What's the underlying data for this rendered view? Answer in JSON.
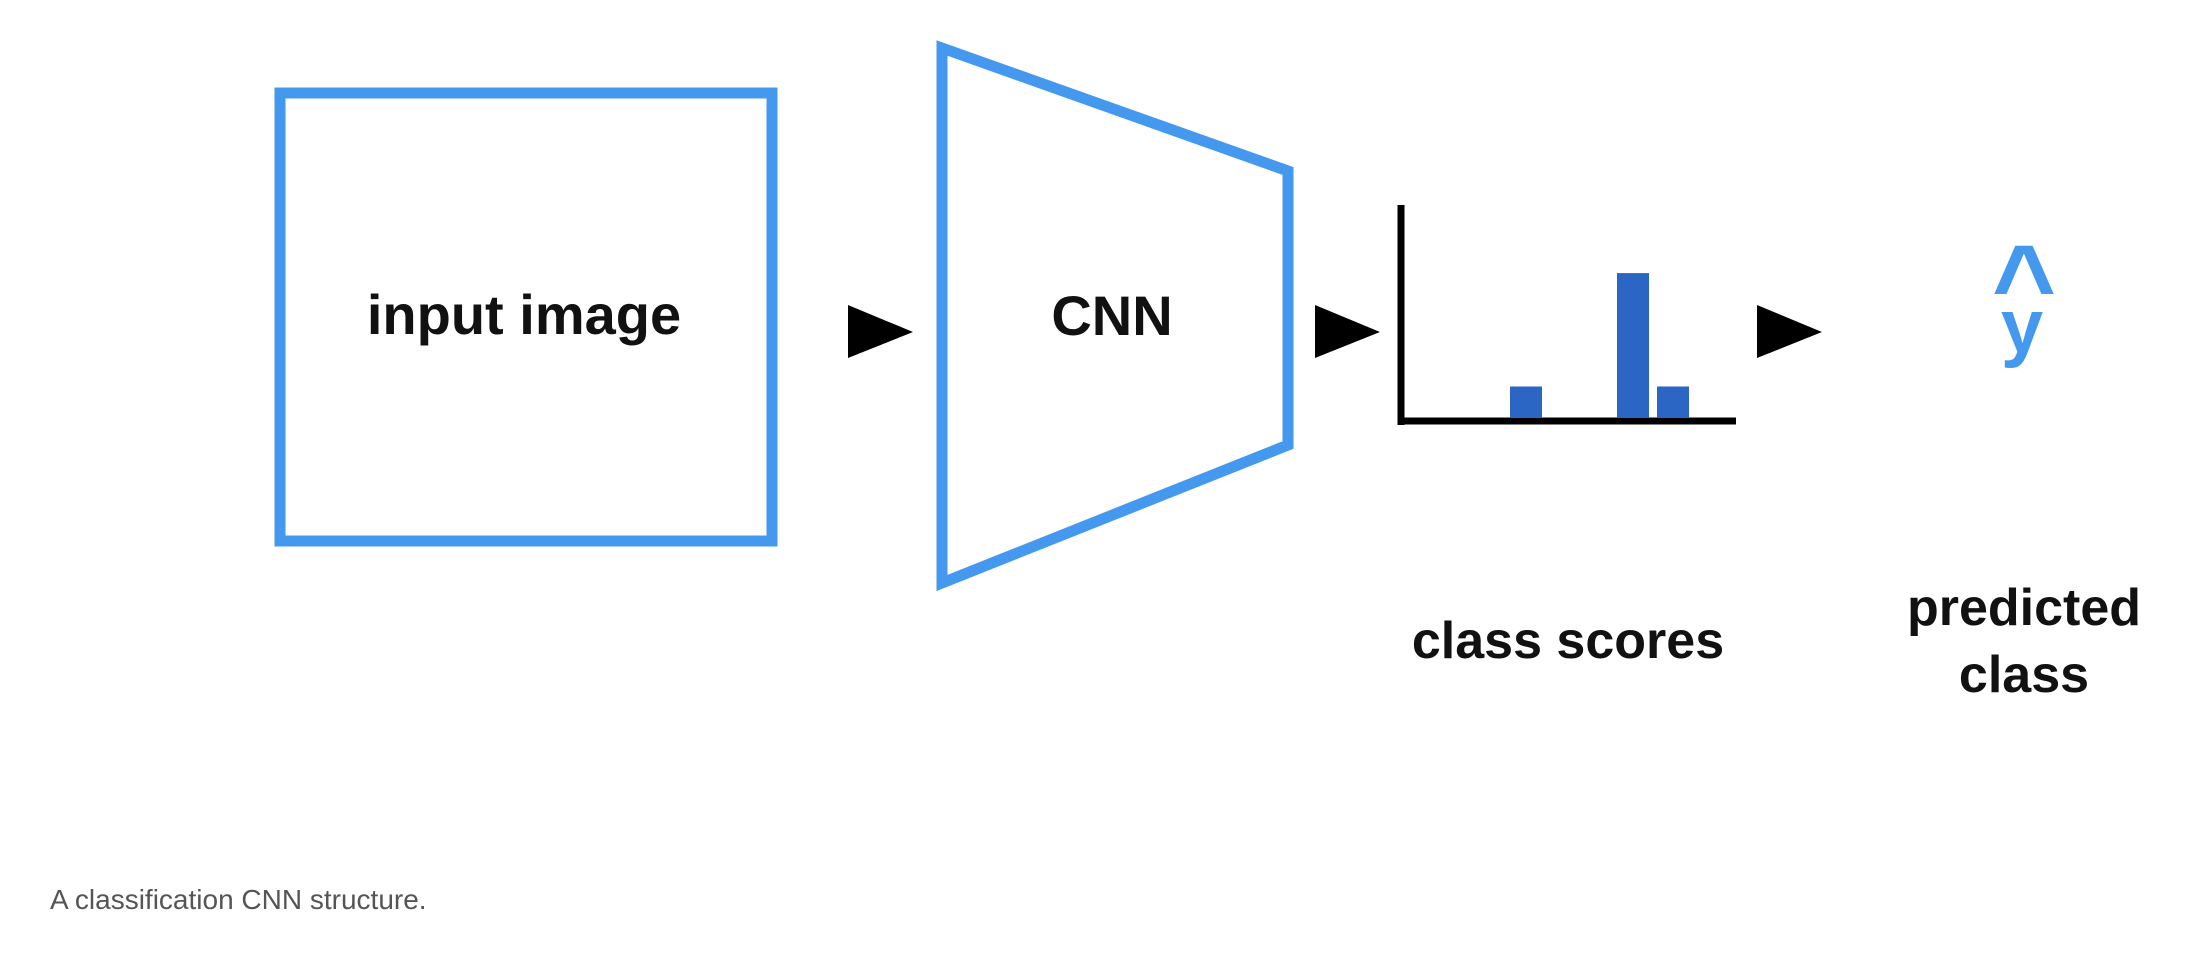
{
  "labels": {
    "input_image": "input image",
    "cnn": "CNN",
    "class_scores": "class scores",
    "predicted_line1": "predicted",
    "predicted_line2": "class",
    "y_hat_caret": "^",
    "y_hat_letter": "y"
  },
  "caption": "A classification CNN structure.",
  "scores": [
    0.15,
    0.69,
    0.15
  ],
  "colors": {
    "outline": "#4499EE",
    "bar": "#2B66C4",
    "axis": "#000000",
    "arrow": "#000000",
    "text": "#111111",
    "caption": "#555555"
  }
}
